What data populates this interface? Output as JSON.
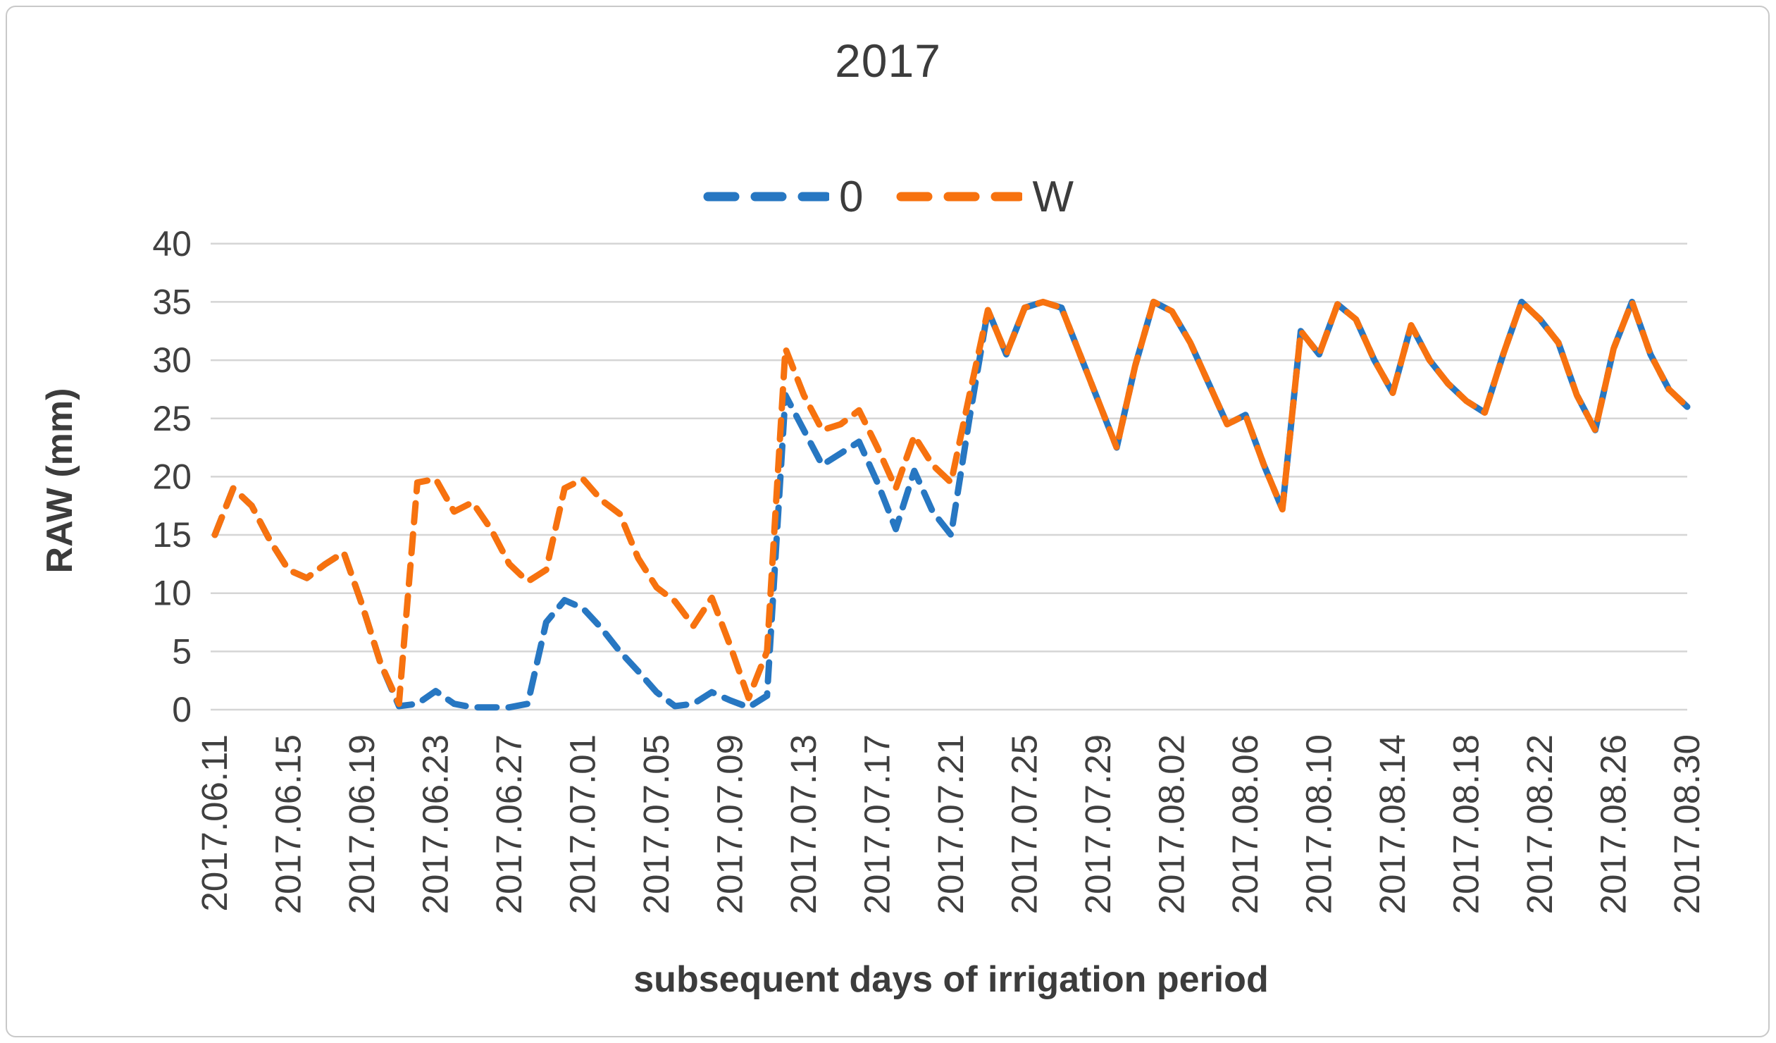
{
  "chart": {
    "title": "2017",
    "ylabel": "RAW (mm)",
    "xlabel": "subsequent days of irrigation period"
  },
  "chart_data": {
    "type": "line",
    "title": "2017",
    "xlabel": "subsequent days of irrigation period",
    "ylabel": "RAW (mm)",
    "ylim": [
      0,
      40
    ],
    "yticks": [
      0,
      5,
      10,
      15,
      20,
      25,
      30,
      35,
      40
    ],
    "grid": "horizontal",
    "legend_position": "top-center",
    "line_style": "dashed",
    "tick_every": 4,
    "gridline_color": "#d5d5d5",
    "text_color": "#404040",
    "categories": [
      "2017.06.11",
      "2017.06.12",
      "2017.06.13",
      "2017.06.14",
      "2017.06.15",
      "2017.06.16",
      "2017.06.17",
      "2017.06.18",
      "2017.06.19",
      "2017.06.20",
      "2017.06.21",
      "2017.06.22",
      "2017.06.23",
      "2017.06.24",
      "2017.06.25",
      "2017.06.26",
      "2017.06.27",
      "2017.06.28",
      "2017.06.29",
      "2017.06.30",
      "2017.07.01",
      "2017.07.02",
      "2017.07.03",
      "2017.07.04",
      "2017.07.05",
      "2017.07.06",
      "2017.07.07",
      "2017.07.08",
      "2017.07.09",
      "2017.07.10",
      "2017.07.11",
      "2017.07.12",
      "2017.07.13",
      "2017.07.14",
      "2017.07.15",
      "2017.07.16",
      "2017.07.17",
      "2017.07.18",
      "2017.07.19",
      "2017.07.20",
      "2017.07.21",
      "2017.07.22",
      "2017.07.23",
      "2017.07.24",
      "2017.07.25",
      "2017.07.26",
      "2017.07.27",
      "2017.07.28",
      "2017.07.29",
      "2017.07.30",
      "2017.07.31",
      "2017.08.01",
      "2017.08.02",
      "2017.08.03",
      "2017.08.04",
      "2017.08.05",
      "2017.08.06",
      "2017.08.07",
      "2017.08.08",
      "2017.08.09",
      "2017.08.10",
      "2017.08.11",
      "2017.08.12",
      "2017.08.13",
      "2017.08.14",
      "2017.08.15",
      "2017.08.16",
      "2017.08.17",
      "2017.08.18",
      "2017.08.19",
      "2017.08.20",
      "2017.08.21",
      "2017.08.22",
      "2017.08.23",
      "2017.08.24",
      "2017.08.25",
      "2017.08.26",
      "2017.08.27",
      "2017.08.28",
      "2017.08.29",
      "2017.08.30"
    ],
    "x_tick_labels": [
      "2017.06.11",
      "2017.06.15",
      "2017.06.19",
      "2017.06.23",
      "2017.06.27",
      "2017.07.01",
      "2017.07.05",
      "2017.07.09",
      "2017.07.13",
      "2017.07.17",
      "2017.07.21",
      "2017.07.25",
      "2017.07.29",
      "2017.08.02",
      "2017.08.06",
      "2017.08.10",
      "2017.08.14",
      "2017.08.18",
      "2017.08.22",
      "2017.08.26",
      "2017.08.30"
    ],
    "series": [
      {
        "name": "0",
        "color": "#2777c2",
        "values": [
          15,
          19,
          17.5,
          14.5,
          12,
          11.3,
          12.5,
          13.5,
          9,
          4,
          0.3,
          0.5,
          1.6,
          0.5,
          0.2,
          0.2,
          0.2,
          0.5,
          7.5,
          9.4,
          8.7,
          7,
          5,
          3.3,
          1.5,
          0.3,
          0.5,
          1.5,
          0.8,
          0.2,
          1.2,
          27,
          24,
          21,
          22,
          23,
          19.5,
          15.5,
          20.5,
          17,
          15,
          25,
          34.3,
          30.5,
          34.5,
          35,
          34.5,
          30.5,
          26.5,
          22.5,
          29.5,
          35,
          34.2,
          31.5,
          28,
          24.5,
          25.3,
          21,
          17.2,
          32.5,
          30.5,
          34.8,
          33.5,
          30,
          27.2,
          33,
          30,
          28,
          26.5,
          25.5,
          30.5,
          35,
          33.5,
          31.5,
          27,
          24,
          31,
          35,
          30.5,
          27.5,
          26
        ]
      },
      {
        "name": "W",
        "color": "#f7720f",
        "values": [
          15,
          19,
          17.5,
          14.5,
          12,
          11.3,
          12.5,
          13.5,
          9,
          4,
          0.5,
          19.5,
          19.8,
          17,
          17.8,
          15.5,
          12.5,
          11,
          12,
          19,
          19.8,
          18,
          16.8,
          13,
          10.5,
          9.3,
          7.2,
          9.6,
          5.5,
          1,
          5,
          31,
          27,
          24,
          24.5,
          25.7,
          22.5,
          19,
          23.5,
          21,
          19.5,
          27,
          34.3,
          30.5,
          34.5,
          35,
          34.5,
          30.5,
          26.5,
          22.5,
          29.5,
          35,
          34.2,
          31.5,
          28,
          24.5,
          25.3,
          21,
          17.2,
          32.5,
          30.5,
          34.8,
          33.5,
          30,
          27.2,
          33,
          30,
          28,
          26.5,
          25.5,
          30.5,
          35,
          33.5,
          31.5,
          27,
          24,
          31,
          35,
          30.5,
          27.5,
          26
        ]
      }
    ]
  }
}
